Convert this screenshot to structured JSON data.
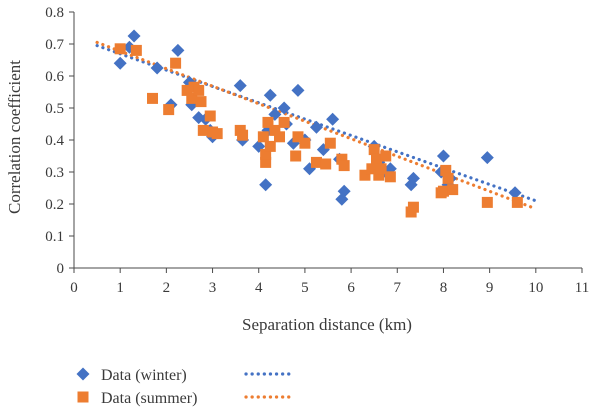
{
  "chart_data": {
    "type": "scatter",
    "title": "",
    "xlabel": "Separation distance (km)",
    "ylabel": "Correlation coefficient",
    "xlim": [
      0,
      11
    ],
    "ylim": [
      0,
      0.8
    ],
    "xticks": [
      "0",
      "1",
      "2",
      "3",
      "4",
      "5",
      "6",
      "7",
      "8",
      "9",
      "10",
      "11"
    ],
    "yticks": [
      "0",
      "0.1",
      "0.2",
      "0.3",
      "0.4",
      "0.5",
      "0.6",
      "0.7",
      "0.8"
    ],
    "grid": "none",
    "legend_position": "bottom-left",
    "series": [
      {
        "name": "Data (winter)",
        "marker": "diamond",
        "color": "#4472C4",
        "trendline": {
          "type": "linear",
          "x": [
            0.5,
            10
          ],
          "y": [
            0.695,
            0.21
          ]
        },
        "points": [
          [
            1.0,
            0.64
          ],
          [
            1.3,
            0.725
          ],
          [
            1.2,
            0.69
          ],
          [
            1.8,
            0.625
          ],
          [
            2.1,
            0.51
          ],
          [
            2.25,
            0.68
          ],
          [
            2.5,
            0.58
          ],
          [
            2.55,
            0.51
          ],
          [
            2.7,
            0.47
          ],
          [
            2.85,
            0.465
          ],
          [
            2.95,
            0.43
          ],
          [
            3.0,
            0.41
          ],
          [
            3.6,
            0.57
          ],
          [
            3.65,
            0.4
          ],
          [
            4.0,
            0.38
          ],
          [
            4.15,
            0.26
          ],
          [
            4.2,
            0.43
          ],
          [
            4.25,
            0.54
          ],
          [
            4.35,
            0.48
          ],
          [
            4.55,
            0.5
          ],
          [
            4.6,
            0.45
          ],
          [
            4.75,
            0.39
          ],
          [
            4.85,
            0.555
          ],
          [
            5.0,
            0.4
          ],
          [
            5.1,
            0.31
          ],
          [
            5.25,
            0.44
          ],
          [
            5.4,
            0.37
          ],
          [
            5.6,
            0.465
          ],
          [
            5.75,
            0.34
          ],
          [
            5.8,
            0.215
          ],
          [
            5.85,
            0.24
          ],
          [
            6.5,
            0.38
          ],
          [
            6.6,
            0.33
          ],
          [
            6.7,
            0.3
          ],
          [
            6.85,
            0.31
          ],
          [
            7.3,
            0.26
          ],
          [
            7.35,
            0.28
          ],
          [
            7.95,
            0.3
          ],
          [
            8.0,
            0.35
          ],
          [
            8.1,
            0.26
          ],
          [
            8.15,
            0.28
          ],
          [
            8.95,
            0.345
          ],
          [
            9.55,
            0.235
          ]
        ]
      },
      {
        "name": "Data (summer)",
        "marker": "square",
        "color": "#ED7D31",
        "trendline": {
          "type": "linear",
          "x": [
            0.5,
            10
          ],
          "y": [
            0.705,
            0.185
          ]
        },
        "points": [
          [
            1.0,
            0.685
          ],
          [
            1.35,
            0.68
          ],
          [
            1.7,
            0.53
          ],
          [
            2.05,
            0.495
          ],
          [
            2.2,
            0.64
          ],
          [
            2.45,
            0.555
          ],
          [
            2.55,
            0.53
          ],
          [
            2.6,
            0.565
          ],
          [
            2.7,
            0.555
          ],
          [
            2.75,
            0.52
          ],
          [
            2.8,
            0.43
          ],
          [
            2.95,
            0.475
          ],
          [
            3.0,
            0.425
          ],
          [
            3.1,
            0.42
          ],
          [
            3.6,
            0.43
          ],
          [
            3.65,
            0.415
          ],
          [
            4.1,
            0.41
          ],
          [
            4.15,
            0.33
          ],
          [
            4.15,
            0.355
          ],
          [
            4.2,
            0.455
          ],
          [
            4.25,
            0.38
          ],
          [
            4.35,
            0.43
          ],
          [
            4.45,
            0.41
          ],
          [
            4.55,
            0.455
          ],
          [
            4.8,
            0.35
          ],
          [
            4.85,
            0.41
          ],
          [
            5.0,
            0.39
          ],
          [
            5.25,
            0.33
          ],
          [
            5.45,
            0.325
          ],
          [
            5.55,
            0.39
          ],
          [
            5.8,
            0.34
          ],
          [
            5.85,
            0.32
          ],
          [
            6.3,
            0.29
          ],
          [
            6.45,
            0.31
          ],
          [
            6.5,
            0.37
          ],
          [
            6.55,
            0.34
          ],
          [
            6.6,
            0.29
          ],
          [
            6.65,
            0.31
          ],
          [
            6.75,
            0.35
          ],
          [
            6.85,
            0.285
          ],
          [
            7.3,
            0.175
          ],
          [
            7.35,
            0.19
          ],
          [
            7.95,
            0.235
          ],
          [
            8.0,
            0.24
          ],
          [
            8.05,
            0.305
          ],
          [
            8.1,
            0.28
          ],
          [
            8.2,
            0.245
          ],
          [
            8.95,
            0.205
          ],
          [
            9.6,
            0.205
          ]
        ]
      }
    ]
  }
}
